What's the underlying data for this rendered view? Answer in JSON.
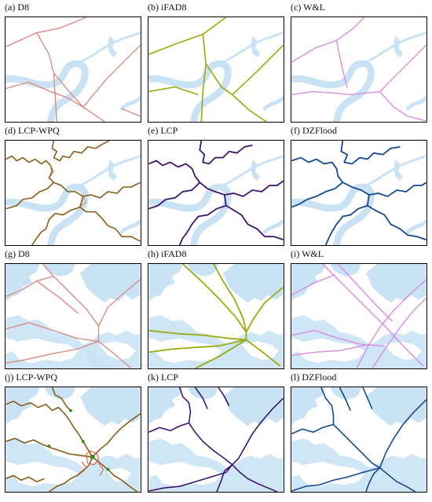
{
  "figure": {
    "panels": [
      {
        "label": "(a) D8",
        "method": "D8",
        "color": "#d98c84",
        "basemap": "river"
      },
      {
        "label": "(b) iFAD8",
        "method": "iFAD8",
        "color": "#9aaa0c",
        "basemap": "river"
      },
      {
        "label": "(c) W&L",
        "method": "W&L",
        "color": "#d88be3",
        "basemap": "river"
      },
      {
        "label": "(d) LCP-WPQ",
        "method": "LCP-WPQ",
        "color": "#8a5a14",
        "basemap": "river"
      },
      {
        "label": "(e) LCP",
        "method": "LCP",
        "color": "#3c136e",
        "basemap": "river"
      },
      {
        "label": "(f) DZFlood",
        "method": "DZFlood",
        "color": "#14468f",
        "basemap": "river"
      },
      {
        "label": "(g) D8",
        "method": "D8",
        "color": "#d98c84",
        "basemap": "network"
      },
      {
        "label": "(h) iFAD8",
        "method": "iFAD8",
        "color": "#9aaa0c",
        "basemap": "network"
      },
      {
        "label": "(i) W&L",
        "method": "W&L",
        "color": "#d88be3",
        "basemap": "network"
      },
      {
        "label": "(j) LCP-WPQ",
        "method": "LCP-WPQ",
        "color": "#8a5a14",
        "basemap": "network"
      },
      {
        "label": "(k) LCP",
        "method": "LCP",
        "color": "#3c136e",
        "basemap": "network"
      },
      {
        "label": "(l) DZFlood",
        "method": "DZFlood",
        "color": "#14468f",
        "basemap": "network"
      }
    ],
    "water_color": "#c9e3f5"
  }
}
